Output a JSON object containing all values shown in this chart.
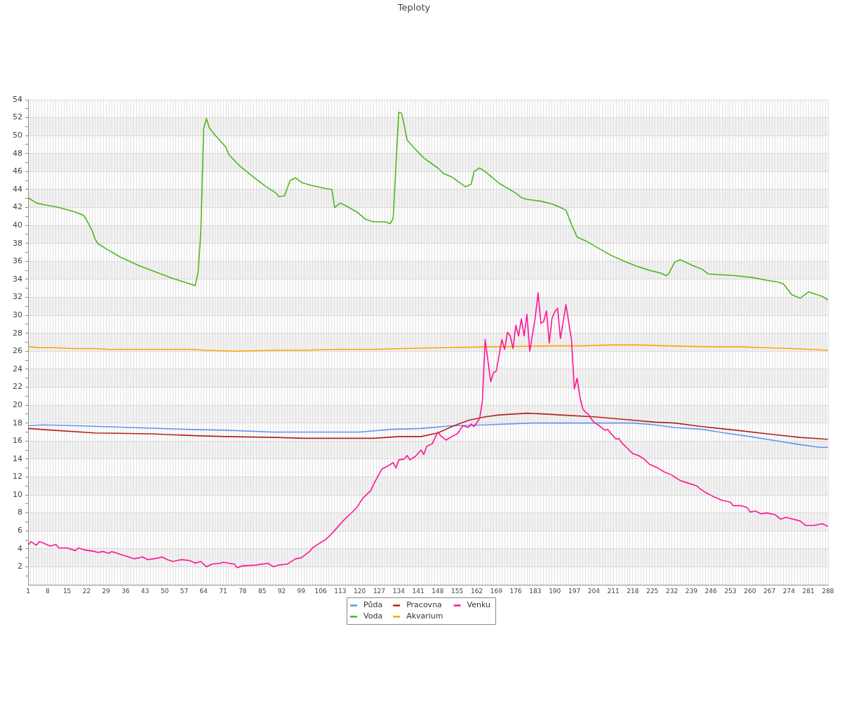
{
  "chart_data": {
    "type": "line",
    "title": "Teploty",
    "xlim": [
      1,
      288
    ],
    "xticks": [
      1,
      {
        "value": 2,
        "label": null
      },
      {
        "value": 3,
        "label": null
      },
      {
        "value": 4,
        "label": null
      },
      {
        "value": 5,
        "label": null
      },
      {
        "value": 6,
        "label": null
      },
      {
        "value": 7,
        "label": null
      },
      8,
      {
        "value": 9,
        "label": null
      },
      {
        "value": 10,
        "label": null
      },
      {
        "value": 11,
        "label": null
      },
      {
        "value": 12,
        "label": null
      },
      {
        "value": 13,
        "label": null
      },
      {
        "value": 14,
        "label": null
      },
      15,
      {
        "value": 16,
        "label": null
      },
      {
        "value": 17,
        "label": null
      },
      {
        "value": 18,
        "label": null
      },
      {
        "value": 19,
        "label": null
      },
      {
        "value": 20,
        "label": null
      },
      {
        "value": 21,
        "label": null
      },
      22,
      {
        "value": 23,
        "label": null
      },
      {
        "value": 24,
        "label": null
      },
      {
        "value": 25,
        "label": null
      },
      {
        "value": 26,
        "label": null
      },
      {
        "value": 27,
        "label": null
      },
      {
        "value": 28,
        "label": null
      },
      29,
      {
        "value": 30,
        "label": null
      },
      {
        "value": 31,
        "label": null
      },
      {
        "value": 32,
        "label": null
      },
      {
        "value": 33,
        "label": null
      },
      {
        "value": 34,
        "label": null
      },
      {
        "value": 35,
        "label": null
      },
      36,
      {
        "value": 37,
        "label": null
      },
      {
        "value": 38,
        "label": null
      },
      {
        "value": 39,
        "label": null
      },
      {
        "value": 40,
        "label": null
      },
      {
        "value": 41,
        "label": null
      },
      {
        "value": 42,
        "label": null
      },
      43,
      {
        "value": 44,
        "label": null
      },
      {
        "value": 45,
        "label": null
      },
      {
        "value": 46,
        "label": null
      },
      {
        "value": 47,
        "label": null
      },
      {
        "value": 48,
        "label": null
      },
      {
        "value": 49,
        "label": null
      },
      50,
      {
        "value": 51,
        "label": null
      },
      {
        "value": 52,
        "label": null
      },
      {
        "value": 53,
        "label": null
      },
      {
        "value": 54,
        "label": null
      },
      {
        "value": 55,
        "label": null
      },
      {
        "value": 56,
        "label": null
      },
      57,
      {
        "value": 58,
        "label": null
      },
      {
        "value": 59,
        "label": null
      },
      {
        "value": 60,
        "label": null
      },
      {
        "value": 61,
        "label": null
      },
      {
        "value": 62,
        "label": null
      },
      {
        "value": 63,
        "label": null
      },
      64,
      {
        "value": 65,
        "label": null
      },
      {
        "value": 66,
        "label": null
      },
      {
        "value": 67,
        "label": null
      },
      {
        "value": 68,
        "label": null
      },
      {
        "value": 69,
        "label": null
      },
      {
        "value": 70,
        "label": null
      },
      71,
      {
        "value": 72,
        "label": null
      },
      {
        "value": 73,
        "label": null
      },
      {
        "value": 74,
        "label": null
      },
      {
        "value": 75,
        "label": null
      },
      {
        "value": 76,
        "label": null
      },
      {
        "value": 77,
        "label": null
      },
      78,
      {
        "value": 79,
        "label": null
      },
      {
        "value": 80,
        "label": null
      },
      {
        "value": 81,
        "label": null
      },
      {
        "value": 82,
        "label": null
      },
      {
        "value": 83,
        "label": null
      },
      {
        "value": 84,
        "label": null
      },
      85,
      {
        "value": 86,
        "label": null
      },
      {
        "value": 87,
        "label": null
      },
      {
        "value": 88,
        "label": null
      },
      {
        "value": 89,
        "label": null
      },
      {
        "value": 90,
        "label": null
      },
      {
        "value": 91,
        "label": null
      },
      92,
      {
        "value": 93,
        "label": null
      },
      {
        "value": 94,
        "label": null
      },
      {
        "value": 95,
        "label": null
      },
      {
        "value": 96,
        "label": null
      },
      {
        "value": 97,
        "label": null
      },
      {
        "value": 98,
        "label": null
      },
      99,
      {
        "value": 100,
        "label": null
      },
      {
        "value": 101,
        "label": null
      },
      {
        "value": 102,
        "label": null
      },
      {
        "value": 103,
        "label": null
      },
      {
        "value": 104,
        "label": null
      },
      {
        "value": 105,
        "label": null
      },
      106,
      {
        "value": 107,
        "label": null
      },
      {
        "value": 108,
        "label": null
      },
      {
        "value": 109,
        "label": null
      },
      {
        "value": 110,
        "label": null
      },
      {
        "value": 111,
        "label": null
      },
      {
        "value": 112,
        "label": null
      },
      113,
      {
        "value": 114,
        "label": null
      },
      {
        "value": 115,
        "label": null
      },
      {
        "value": 116,
        "label": null
      },
      {
        "value": 117,
        "label": null
      },
      {
        "value": 118,
        "label": null
      },
      {
        "value": 119,
        "label": null
      },
      120,
      {
        "value": 121,
        "label": null
      },
      {
        "value": 122,
        "label": null
      },
      {
        "value": 123,
        "label": null
      },
      {
        "value": 124,
        "label": null
      },
      {
        "value": 125,
        "label": null
      },
      {
        "value": 126,
        "label": null
      },
      127,
      {
        "value": 128,
        "label": null
      },
      {
        "value": 129,
        "label": null
      },
      {
        "value": 130,
        "label": null
      },
      {
        "value": 131,
        "label": null
      },
      {
        "value": 132,
        "label": null
      },
      {
        "value": 133,
        "label": null
      },
      134,
      {
        "value": 135,
        "label": null
      },
      {
        "value": 136,
        "label": null
      },
      {
        "value": 137,
        "label": null
      },
      {
        "value": 138,
        "label": null
      },
      {
        "value": 139,
        "label": null
      },
      {
        "value": 140,
        "label": null
      },
      141,
      {
        "value": 142,
        "label": null
      },
      {
        "value": 143,
        "label": null
      },
      {
        "value": 144,
        "label": null
      },
      {
        "value": 145,
        "label": null
      },
      {
        "value": 146,
        "label": null
      },
      {
        "value": 147,
        "label": null
      },
      148,
      {
        "value": 149,
        "label": null
      },
      {
        "value": 150,
        "label": null
      },
      {
        "value": 151,
        "label": null
      },
      {
        "value": 152,
        "label": null
      },
      {
        "value": 153,
        "label": null
      },
      {
        "value": 154,
        "label": null
      },
      155,
      {
        "value": 156,
        "label": null
      },
      {
        "value": 157,
        "label": null
      },
      {
        "value": 158,
        "label": null
      },
      {
        "value": 159,
        "label": null
      },
      {
        "value": 160,
        "label": null
      },
      {
        "value": 161,
        "label": null
      },
      162,
      {
        "value": 163,
        "label": null
      },
      {
        "value": 164,
        "label": null
      },
      {
        "value": 165,
        "label": null
      },
      {
        "value": 166,
        "label": null
      },
      {
        "value": 167,
        "label": null
      },
      {
        "value": 168,
        "label": null
      },
      169,
      {
        "value": 170,
        "label": null
      },
      {
        "value": 171,
        "label": null
      },
      {
        "value": 172,
        "label": null
      },
      {
        "value": 173,
        "label": null
      },
      {
        "value": 174,
        "label": null
      },
      {
        "value": 175,
        "label": null
      },
      176,
      {
        "value": 177,
        "label": null
      },
      {
        "value": 178,
        "label": null
      },
      {
        "value": 179,
        "label": null
      },
      {
        "value": 180,
        "label": null
      },
      {
        "value": 181,
        "label": null
      },
      {
        "value": 182,
        "label": null
      },
      183,
      {
        "value": 184,
        "label": null
      },
      {
        "value": 185,
        "label": null
      },
      {
        "value": 186,
        "label": null
      },
      {
        "value": 187,
        "label": null
      },
      {
        "value": 188,
        "label": null
      },
      {
        "value": 189,
        "label": null
      },
      190,
      {
        "value": 191,
        "label": null
      },
      {
        "value": 192,
        "label": null
      },
      {
        "value": 193,
        "label": null
      },
      {
        "value": 194,
        "label": null
      },
      {
        "value": 195,
        "label": null
      },
      {
        "value": 196,
        "label": null
      },
      197,
      {
        "value": 198,
        "label": null
      },
      {
        "value": 199,
        "label": null
      },
      {
        "value": 200,
        "label": null
      },
      {
        "value": 201,
        "label": null
      },
      {
        "value": 202,
        "label": null
      },
      {
        "value": 203,
        "label": null
      },
      204,
      {
        "value": 205,
        "label": null
      },
      {
        "value": 206,
        "label": null
      },
      {
        "value": 207,
        "label": null
      },
      {
        "value": 208,
        "label": null
      },
      {
        "value": 209,
        "label": null
      },
      {
        "value": 210,
        "label": null
      },
      211,
      {
        "value": 212,
        "label": null
      },
      {
        "value": 213,
        "label": null
      },
      {
        "value": 214,
        "label": null
      },
      {
        "value": 215,
        "label": null
      },
      {
        "value": 216,
        "label": null
      },
      {
        "value": 217,
        "label": null
      },
      218,
      {
        "value": 219,
        "label": null
      },
      {
        "value": 220,
        "label": null
      },
      {
        "value": 221,
        "label": null
      },
      {
        "value": 222,
        "label": null
      },
      {
        "value": 223,
        "label": null
      },
      {
        "value": 224,
        "label": null
      },
      225,
      {
        "value": 226,
        "label": null
      },
      {
        "value": 227,
        "label": null
      },
      {
        "value": 228,
        "label": null
      },
      {
        "value": 229,
        "label": null
      },
      {
        "value": 230,
        "label": null
      },
      {
        "value": 231,
        "label": null
      },
      232,
      {
        "value": 233,
        "label": null
      },
      {
        "value": 234,
        "label": null
      },
      {
        "value": 235,
        "label": null
      },
      {
        "value": 236,
        "label": null
      },
      {
        "value": 237,
        "label": null
      },
      {
        "value": 238,
        "label": null
      },
      239,
      {
        "value": 240,
        "label": null
      },
      {
        "value": 241,
        "label": null
      },
      {
        "value": 242,
        "label": null
      },
      {
        "value": 243,
        "label": null
      },
      {
        "value": 244,
        "label": null
      },
      {
        "value": 245,
        "label": null
      },
      246,
      {
        "value": 247,
        "label": null
      },
      {
        "value": 248,
        "label": null
      },
      {
        "value": 249,
        "label": null
      },
      {
        "value": 250,
        "label": null
      },
      {
        "value": 251,
        "label": null
      },
      {
        "value": 252,
        "label": null
      },
      253,
      {
        "value": 254,
        "label": null
      },
      {
        "value": 255,
        "label": null
      },
      {
        "value": 256,
        "label": null
      },
      {
        "value": 257,
        "label": null
      },
      {
        "value": 258,
        "label": null
      },
      {
        "value": 259,
        "label": null
      },
      260,
      {
        "value": 261,
        "label": null
      },
      {
        "value": 262,
        "label": null
      },
      {
        "value": 263,
        "label": null
      },
      {
        "value": 264,
        "label": null
      },
      {
        "value": 265,
        "label": null
      },
      {
        "value": 266,
        "label": null
      },
      267,
      {
        "value": 268,
        "label": null
      },
      {
        "value": 269,
        "label": null
      },
      {
        "value": 270,
        "label": null
      },
      {
        "value": 271,
        "label": null
      },
      {
        "value": 272,
        "label": null
      },
      {
        "value": 273,
        "label": null
      },
      274,
      {
        "value": 275,
        "label": null
      },
      {
        "value": 276,
        "label": null
      },
      {
        "value": 277,
        "label": null
      },
      {
        "value": 278,
        "label": null
      },
      {
        "value": 279,
        "label": null
      },
      {
        "value": 280,
        "label": null
      },
      281,
      {
        "value": 282,
        "label": null
      },
      {
        "value": 283,
        "label": null
      },
      {
        "value": 284,
        "label": null
      },
      {
        "value": 285,
        "label": null
      },
      {
        "value": 286,
        "label": null
      },
      {
        "value": 287,
        "label": null
      },
      288
    ],
    "ylim": [
      0,
      54
    ],
    "yticks": [
      {
        "value": 1,
        "label": null
      },
      2,
      {
        "value": 3,
        "label": null
      },
      4,
      {
        "value": 5,
        "label": null
      },
      6,
      {
        "value": 7,
        "label": null
      },
      8,
      {
        "value": 9,
        "label": null
      },
      10,
      {
        "value": 11,
        "label": null
      },
      12,
      {
        "value": 13,
        "label": null
      },
      14,
      {
        "value": 15,
        "label": null
      },
      16,
      {
        "value": 17,
        "label": null
      },
      18,
      {
        "value": 19,
        "label": null
      },
      20,
      {
        "value": 21,
        "label": null
      },
      22,
      {
        "value": 23,
        "label": null
      },
      24,
      {
        "value": 25,
        "label": null
      },
      26,
      {
        "value": 27,
        "label": null
      },
      28,
      {
        "value": 29,
        "label": null
      },
      30,
      {
        "value": 31,
        "label": null
      },
      32,
      {
        "value": 33,
        "label": null
      },
      34,
      {
        "value": 35,
        "label": null
      },
      36,
      {
        "value": 37,
        "label": null
      },
      38,
      {
        "value": 39,
        "label": null
      },
      40,
      {
        "value": 41,
        "label": null
      },
      42,
      {
        "value": 43,
        "label": null
      },
      44,
      {
        "value": 45,
        "label": null
      },
      46,
      {
        "value": 47,
        "label": null
      },
      48,
      {
        "value": 49,
        "label": null
      },
      50,
      {
        "value": 51,
        "label": null
      },
      52,
      {
        "value": 53,
        "label": null
      },
      54
    ],
    "grid": true,
    "legend": "bottom",
    "series": [
      {
        "name": "Půda",
        "color": "#6495ed",
        "x": [
          1,
          6,
          19,
          38,
          58,
          72,
          89,
          108,
          120,
          131,
          142,
          153,
          165,
          182,
          218,
          226,
          233,
          243,
          251,
          260,
          268,
          276,
          285,
          288
        ],
        "values": [
          17.7,
          17.8,
          17.7,
          17.5,
          17.3,
          17.2,
          17.0,
          17.0,
          17.0,
          17.3,
          17.4,
          17.7,
          17.8,
          18.0,
          18.0,
          17.8,
          17.5,
          17.3,
          16.9,
          16.5,
          16.1,
          15.7,
          15.3,
          15.3
        ]
      },
      {
        "name": "Voda",
        "color": "#4cb81c",
        "x": [
          1,
          4,
          7,
          12,
          18,
          21,
          22,
          24,
          25,
          26,
          29,
          34,
          41,
          47,
          53,
          57,
          61,
          62,
          63,
          64,
          65,
          66,
          68,
          72,
          73,
          77,
          81,
          86,
          90,
          91,
          93,
          95,
          97,
          99,
          102,
          108,
          110,
          111,
          113,
          115,
          119,
          122,
          125,
          129,
          131,
          132,
          134,
          135,
          136,
          137,
          139,
          143,
          148,
          150,
          153,
          158,
          160,
          161,
          163,
          165,
          170,
          176,
          178,
          180,
          185,
          189,
          192,
          194,
          196,
          198,
          201,
          206,
          210,
          215,
          219,
          224,
          228,
          230,
          231,
          233,
          235,
          239,
          243,
          245,
          250,
          255,
          261,
          266,
          270,
          272,
          275,
          278,
          281,
          286,
          288
        ],
        "values": [
          43.1,
          42.5,
          42.3,
          42.0,
          41.5,
          41.1,
          40.6,
          39.4,
          38.5,
          38.0,
          37.4,
          36.5,
          35.5,
          34.8,
          34.1,
          33.7,
          33.3,
          34.8,
          39.3,
          50.8,
          51.9,
          50.9,
          50.1,
          48.7,
          47.9,
          46.6,
          45.6,
          44.4,
          43.6,
          43.2,
          43.3,
          45.0,
          45.3,
          44.8,
          44.5,
          44.1,
          44.0,
          42.0,
          42.5,
          42.2,
          41.5,
          40.7,
          40.4,
          40.4,
          40.2,
          40.8,
          52.6,
          52.5,
          51.1,
          49.5,
          48.8,
          47.5,
          46.4,
          45.8,
          45.4,
          44.3,
          44.6,
          46.0,
          46.4,
          46.0,
          44.7,
          43.6,
          43.1,
          42.9,
          42.7,
          42.4,
          42.0,
          41.7,
          40.1,
          38.7,
          38.3,
          37.4,
          36.7,
          36.0,
          35.5,
          35.0,
          34.7,
          34.4,
          34.7,
          35.9,
          36.2,
          35.6,
          35.1,
          34.6,
          34.5,
          34.4,
          34.2,
          33.9,
          33.7,
          33.5,
          32.3,
          31.9,
          32.6,
          32.1,
          31.7
        ]
      },
      {
        "name": "Pracovna",
        "color": "#b22222",
        "x": [
          1,
          10,
          25,
          45,
          61,
          72,
          90,
          100,
          125,
          134,
          142,
          148,
          153,
          159,
          165,
          170,
          180,
          187,
          192,
          204,
          215,
          226,
          233,
          243,
          255,
          269,
          278,
          288
        ],
        "values": [
          17.4,
          17.2,
          16.9,
          16.8,
          16.6,
          16.5,
          16.4,
          16.3,
          16.3,
          16.5,
          16.5,
          16.9,
          17.6,
          18.3,
          18.7,
          18.9,
          19.1,
          19.0,
          18.9,
          18.7,
          18.4,
          18.1,
          18.0,
          17.6,
          17.2,
          16.7,
          16.4,
          16.2
        ]
      },
      {
        "name": "Akvarium",
        "color": "#ffa500",
        "x": [
          1,
          5,
          10,
          17,
          25,
          30,
          50,
          60,
          65,
          75,
          90,
          100,
          110,
          125,
          135,
          150,
          170,
          190,
          200,
          210,
          220,
          230,
          245,
          255,
          265,
          275,
          282,
          288
        ],
        "values": [
          26.5,
          26.4,
          26.4,
          26.3,
          26.3,
          26.2,
          26.2,
          26.2,
          26.1,
          26.0,
          26.1,
          26.1,
          26.2,
          26.2,
          26.3,
          26.4,
          26.5,
          26.6,
          26.6,
          26.7,
          26.7,
          26.6,
          26.5,
          26.5,
          26.4,
          26.3,
          26.2,
          26.1
        ]
      },
      {
        "name": "Venku",
        "color": "#ff1493",
        "x": [
          1,
          2,
          4,
          5,
          6,
          9,
          11,
          12,
          15,
          18,
          19,
          21,
          25,
          26,
          28,
          30,
          31,
          33,
          36,
          39,
          41,
          42,
          44,
          48,
          49,
          51,
          53,
          56,
          59,
          61,
          63,
          65,
          67,
          70,
          71,
          75,
          76,
          78,
          83,
          87,
          89,
          91,
          94,
          97,
          99,
          102,
          103,
          106,
          108,
          110,
          112,
          114,
          116,
          119,
          121,
          124,
          125,
          128,
          130,
          131,
          132,
          133,
          134,
          136,
          137,
          138,
          140,
          142,
          143,
          144,
          146,
          148,
          149,
          151,
          153,
          155,
          157,
          159,
          160,
          161,
          163,
          164,
          165,
          167,
          168,
          169,
          171,
          172,
          173,
          174,
          175,
          176,
          177,
          178,
          179,
          180,
          181,
          183,
          184,
          185,
          186,
          187,
          188,
          189,
          190,
          191,
          192,
          194,
          196,
          197,
          198,
          199,
          200,
          201,
          202,
          203,
          204,
          206,
          208,
          209,
          210,
          212,
          213,
          214,
          216,
          218,
          220,
          222,
          224,
          227,
          229,
          232,
          235,
          237,
          241,
          242,
          244,
          247,
          250,
          253,
          254,
          257,
          259,
          260,
          262,
          264,
          266,
          269,
          271,
          273,
          278,
          280,
          283,
          286,
          288
        ],
        "values": [
          4.4,
          4.8,
          4.4,
          4.8,
          4.7,
          4.3,
          4.5,
          4.1,
          4.1,
          3.8,
          4.1,
          3.9,
          3.7,
          3.6,
          3.7,
          3.5,
          3.7,
          3.5,
          3.2,
          2.9,
          3.0,
          3.1,
          2.8,
          3.0,
          3.1,
          2.8,
          2.6,
          2.8,
          2.7,
          2.4,
          2.6,
          2.0,
          2.3,
          2.4,
          2.5,
          2.3,
          1.9,
          2.1,
          2.2,
          2.4,
          2.0,
          2.2,
          2.3,
          2.9,
          3.0,
          3.7,
          4.1,
          4.7,
          5.1,
          5.7,
          6.4,
          7.1,
          7.7,
          8.6,
          9.6,
          10.5,
          11.2,
          12.9,
          13.2,
          13.4,
          13.6,
          13.0,
          13.9,
          14.0,
          14.4,
          13.9,
          14.3,
          15.0,
          14.5,
          15.4,
          15.7,
          17.0,
          16.6,
          16.1,
          16.5,
          16.8,
          17.7,
          17.5,
          17.9,
          17.6,
          18.5,
          20.4,
          27.3,
          22.6,
          23.6,
          23.8,
          27.3,
          26.2,
          28.1,
          27.7,
          26.3,
          28.9,
          27.7,
          29.6,
          27.7,
          30.1,
          26.0,
          29.8,
          32.5,
          29.1,
          29.3,
          30.5,
          26.9,
          29.7,
          30.4,
          30.8,
          27.4,
          31.2,
          27.2,
          21.8,
          23.0,
          20.9,
          19.6,
          19.2,
          19.0,
          18.5,
          18.1,
          17.7,
          17.2,
          17.3,
          16.9,
          16.2,
          16.3,
          15.8,
          15.2,
          14.6,
          14.4,
          14.0,
          13.4,
          13.0,
          12.6,
          12.2,
          11.6,
          11.4,
          11.0,
          10.7,
          10.3,
          9.8,
          9.4,
          9.2,
          8.8,
          8.8,
          8.6,
          8.1,
          8.2,
          7.9,
          8.0,
          7.8,
          7.3,
          7.5,
          7.1,
          6.6,
          6.6,
          6.8,
          6.5
        ]
      }
    ]
  }
}
